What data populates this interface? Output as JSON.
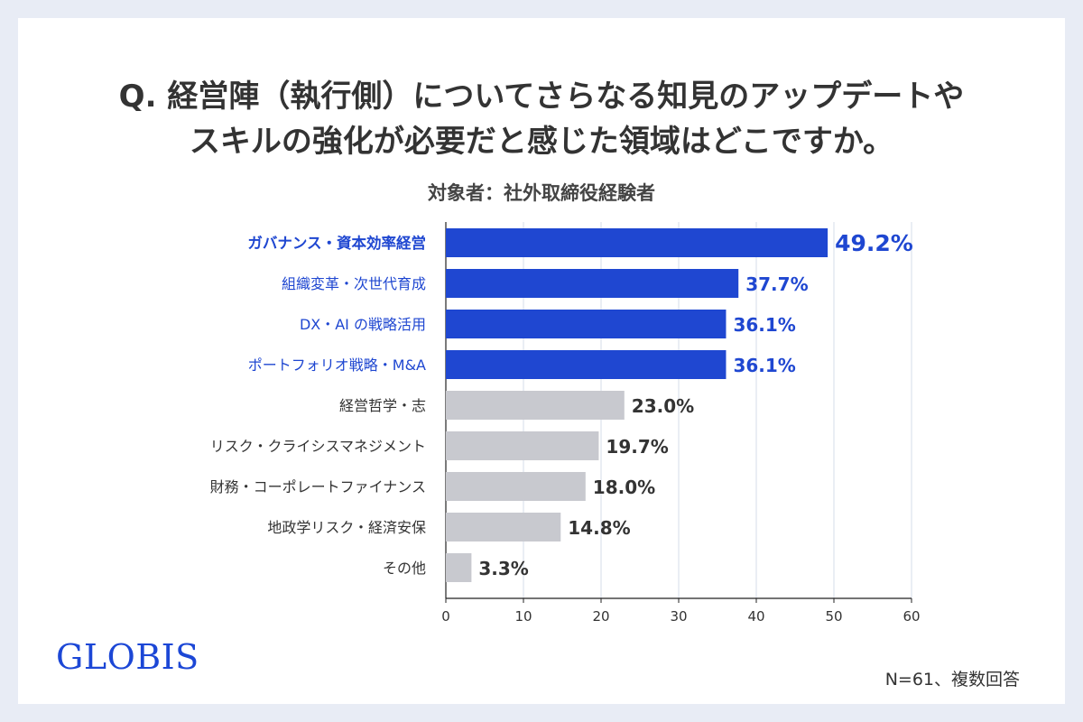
{
  "title_lines": [
    "Q. 経営陣（執行側）についてさらなる知見のアップデートや",
    "スキルの強化が必要だと感じた領域はどこですか。"
  ],
  "subtitle": "対象者：社外取締役経験者",
  "logo": "GLOBIS",
  "note": "N=61、複数回答",
  "colors": {
    "highlight_bar": "#1f47d1",
    "highlight_text": "#1f47d1",
    "other_bar": "#c8c9cf",
    "other_text": "#333333",
    "grid": "#d6dde8"
  },
  "chart_data": {
    "type": "bar",
    "orientation": "horizontal",
    "categories": [
      "ガバナンス・資本効率経営",
      "組織変革・次世代育成",
      "DX・AI の戦略活用",
      "ポートフォリオ戦略・M&A",
      "経営哲学・志",
      "リスク・クライシスマネジメント",
      "財務・コーポレートファイナンス",
      "地政学リスク・経済安保",
      "その他"
    ],
    "values": [
      49.2,
      37.7,
      36.1,
      36.1,
      23.0,
      19.7,
      18.0,
      14.8,
      3.3
    ],
    "value_labels": [
      "49.2%",
      "37.7%",
      "36.1%",
      "36.1%",
      "23.0%",
      "19.7%",
      "18.0%",
      "14.8%",
      "3.3%"
    ],
    "highlighted": [
      true,
      true,
      true,
      true,
      false,
      false,
      false,
      false,
      false
    ],
    "xlim": [
      0,
      60
    ],
    "xticks": [
      0,
      10,
      20,
      30,
      40,
      50,
      60
    ],
    "grid": true
  }
}
